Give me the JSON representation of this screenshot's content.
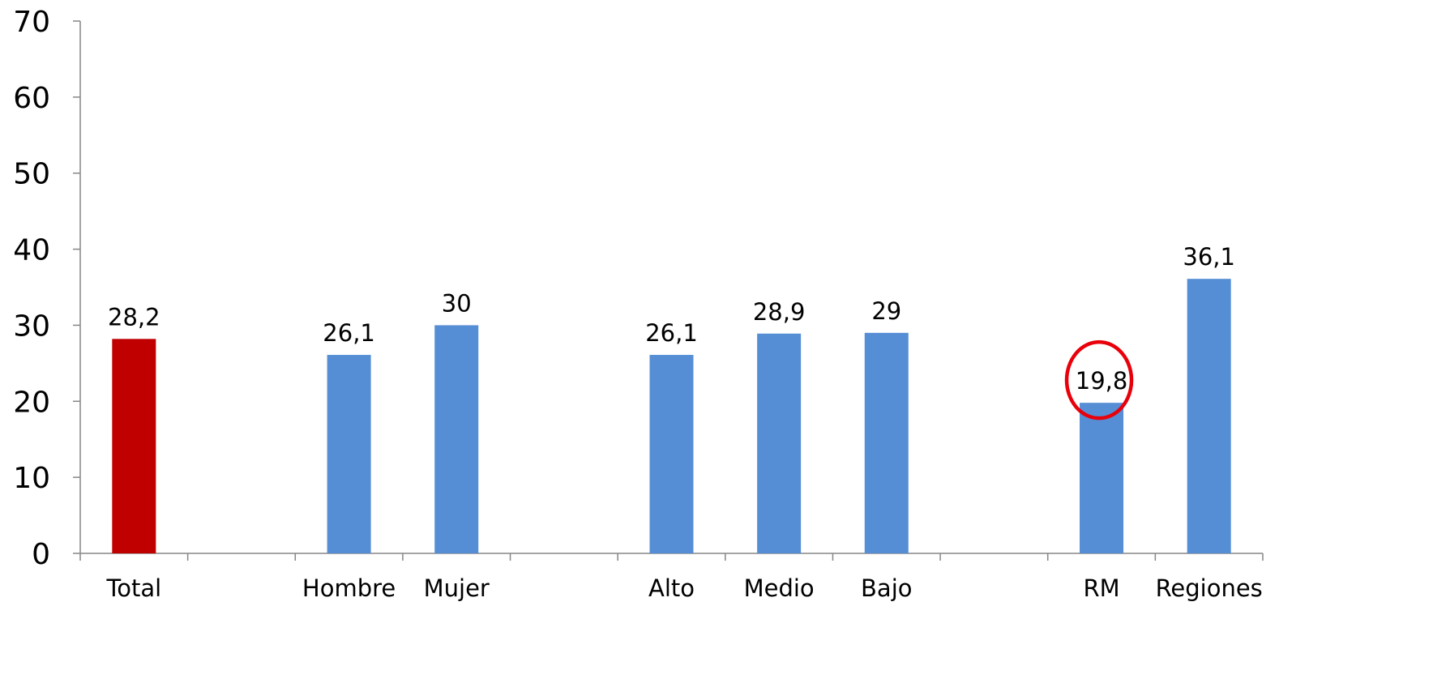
{
  "chart_data": {
    "type": "bar",
    "title": "",
    "xlabel": "",
    "ylabel": "",
    "ylim": [
      0,
      70
    ],
    "yticks": [
      "0",
      "10",
      "20",
      "30",
      "40",
      "50",
      "60",
      "70"
    ],
    "grid": false,
    "legend": "none",
    "categories": [
      "Total",
      "",
      "Hombre",
      "Mujer",
      "",
      "Alto",
      "Medio",
      "Bajo",
      "",
      "RM",
      "Regiones"
    ],
    "values": [
      28.2,
      null,
      26.1,
      30,
      null,
      26.1,
      28.9,
      29,
      null,
      19.8,
      36.1
    ],
    "data_labels": [
      "28,2",
      "",
      "26,1",
      "30",
      "",
      "26,1",
      "28,9",
      "29",
      "",
      "19,8",
      "36,1"
    ],
    "highlight_category": "RM",
    "colors": {
      "total_bar": "#C00000",
      "bar": "#558ED5",
      "highlight_circle": "#E8000B",
      "axis": "#868686"
    }
  }
}
